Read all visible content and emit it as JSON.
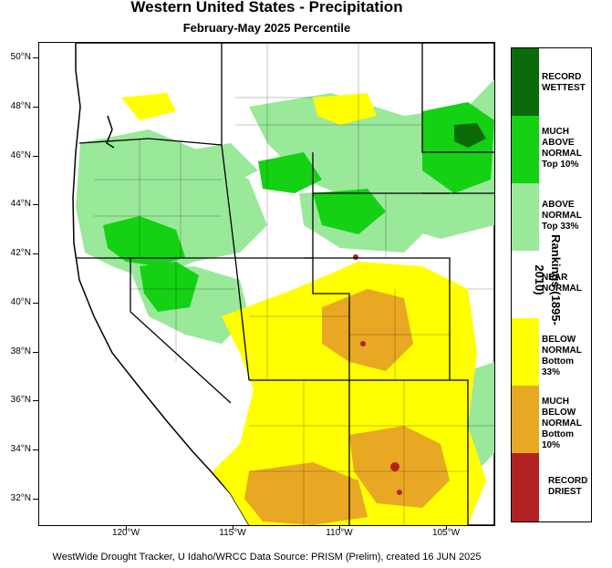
{
  "title": "Western United States - Precipitation",
  "subtitle": "February-May 2025 Percentile",
  "footer": "WestWide Drought Tracker, U Idaho/WRCC Data Source: PRISM (Prelim), created 16 JUN 2025",
  "legend": {
    "title": "Rankings (1895-2010)",
    "categories": [
      {
        "lines": [
          "RECORD",
          "WETTEST"
        ],
        "color": "#0b6b0b"
      },
      {
        "lines": [
          "MUCH",
          "ABOVE",
          "NORMAL",
          "Top 10%"
        ],
        "color": "#14d114"
      },
      {
        "lines": [
          "ABOVE",
          "NORMAL",
          "Top 33%"
        ],
        "color": "#9ae89a"
      },
      {
        "lines": [
          "NEAR",
          "NORMAL"
        ],
        "color": "#ffffff"
      },
      {
        "lines": [
          "BELOW",
          "NORMAL",
          "Bottom 33%"
        ],
        "color": "#ffff00"
      },
      {
        "lines": [
          "MUCH",
          "BELOW",
          "NORMAL",
          "Bottom 10%"
        ],
        "color": "#e8a824"
      },
      {
        "lines": [
          "RECORD",
          "DRIEST"
        ],
        "color": "#b22222"
      }
    ]
  },
  "lat_labels": [
    "50°N",
    "48°N",
    "46°N",
    "44°N",
    "42°N",
    "40°N",
    "38°N",
    "36°N",
    "34°N",
    "32°N"
  ],
  "lon_labels": [
    "120°W",
    "115°W",
    "110°W",
    "105°W"
  ],
  "map_colors": {
    "much_above": "#14d114",
    "above": "#9ae89a",
    "below": "#ffff00",
    "much_below": "#e8a824",
    "record_wet": "#0b6b0b",
    "record_dry": "#b22222",
    "ocean": "#ffffff"
  }
}
